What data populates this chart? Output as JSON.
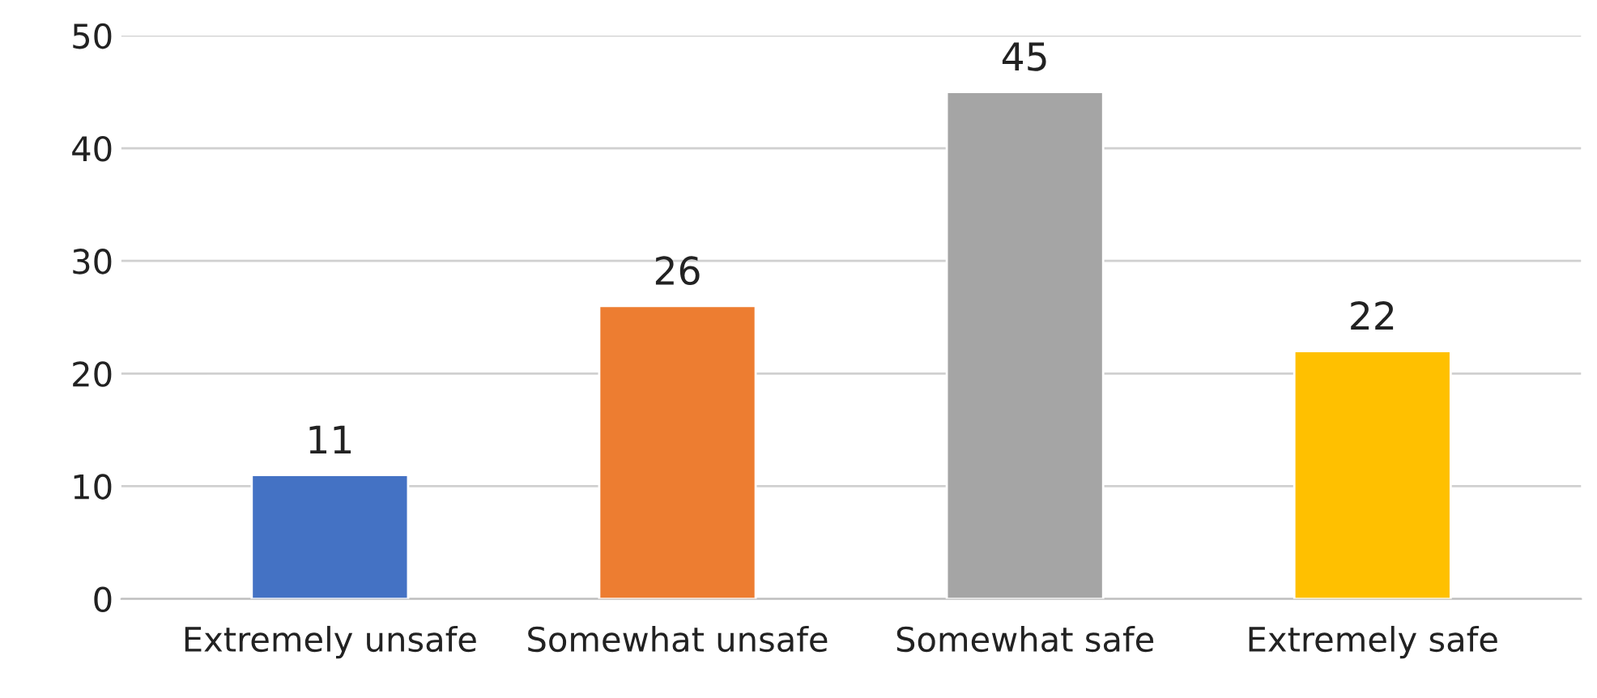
{
  "chart_data": {
    "type": "bar",
    "categories": [
      "Extremely unsafe",
      "Somewhat unsafe",
      "Somewhat safe",
      "Extremely safe"
    ],
    "values": [
      11,
      26,
      45,
      22
    ],
    "colors": [
      "#4472c4",
      "#ed7d31",
      "#a5a5a5",
      "#ffc000"
    ],
    "ylim": [
      0,
      50
    ],
    "yticks": [
      0,
      10,
      20,
      30,
      40,
      50
    ],
    "grid": "y",
    "data_labels": true
  }
}
